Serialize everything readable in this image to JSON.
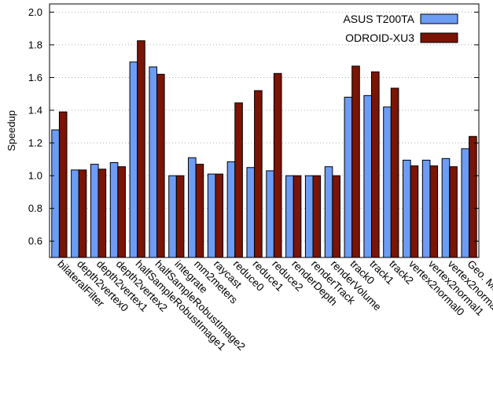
{
  "chart_data": {
    "type": "bar",
    "ylabel": "Speedup",
    "xlabel": "",
    "title": "",
    "ylim": [
      0.5,
      2.05
    ],
    "yticks": [
      0.6,
      0.8,
      1.0,
      1.2,
      1.4,
      1.6,
      1.8,
      2.0
    ],
    "ytick_labels": [
      "0.6",
      "0.8",
      "1.0",
      "1.2",
      "1.4",
      "1.6",
      "1.8",
      "2.0"
    ],
    "grid": true,
    "legend_position": "top-right",
    "categories": [
      "bilateralFilter",
      "depth2vertex0",
      "depth2vertex1",
      "depth2vertex2",
      "halfSampleRobustImage1",
      "halfSampleRobustImage2",
      "integrate",
      "mm2meters",
      "raycast",
      "reduce0",
      "reduce1",
      "reduce2",
      "renderDepth",
      "renderTrack",
      "renderVolume",
      "track0",
      "track1",
      "track2",
      "vertex2normal0",
      "vertex2normal1",
      "vertex2normal2",
      "Geo. Mean"
    ],
    "series": [
      {
        "name": "ASUS T200TA",
        "color": "#6d9cf5",
        "values": [
          1.28,
          1.035,
          1.07,
          1.08,
          1.695,
          1.665,
          1.0,
          1.11,
          1.01,
          1.085,
          1.05,
          1.03,
          1.0,
          1.0,
          1.055,
          1.48,
          1.49,
          1.42,
          1.095,
          1.095,
          1.105,
          1.165
        ]
      },
      {
        "name": "ODROID-XU3",
        "color": "#7a1405",
        "values": [
          1.39,
          1.035,
          1.04,
          1.055,
          1.825,
          1.62,
          1.0,
          1.07,
          1.01,
          1.445,
          1.52,
          1.625,
          1.0,
          1.0,
          1.0,
          1.67,
          1.635,
          1.535,
          1.06,
          1.06,
          1.055,
          1.24
        ]
      }
    ]
  }
}
